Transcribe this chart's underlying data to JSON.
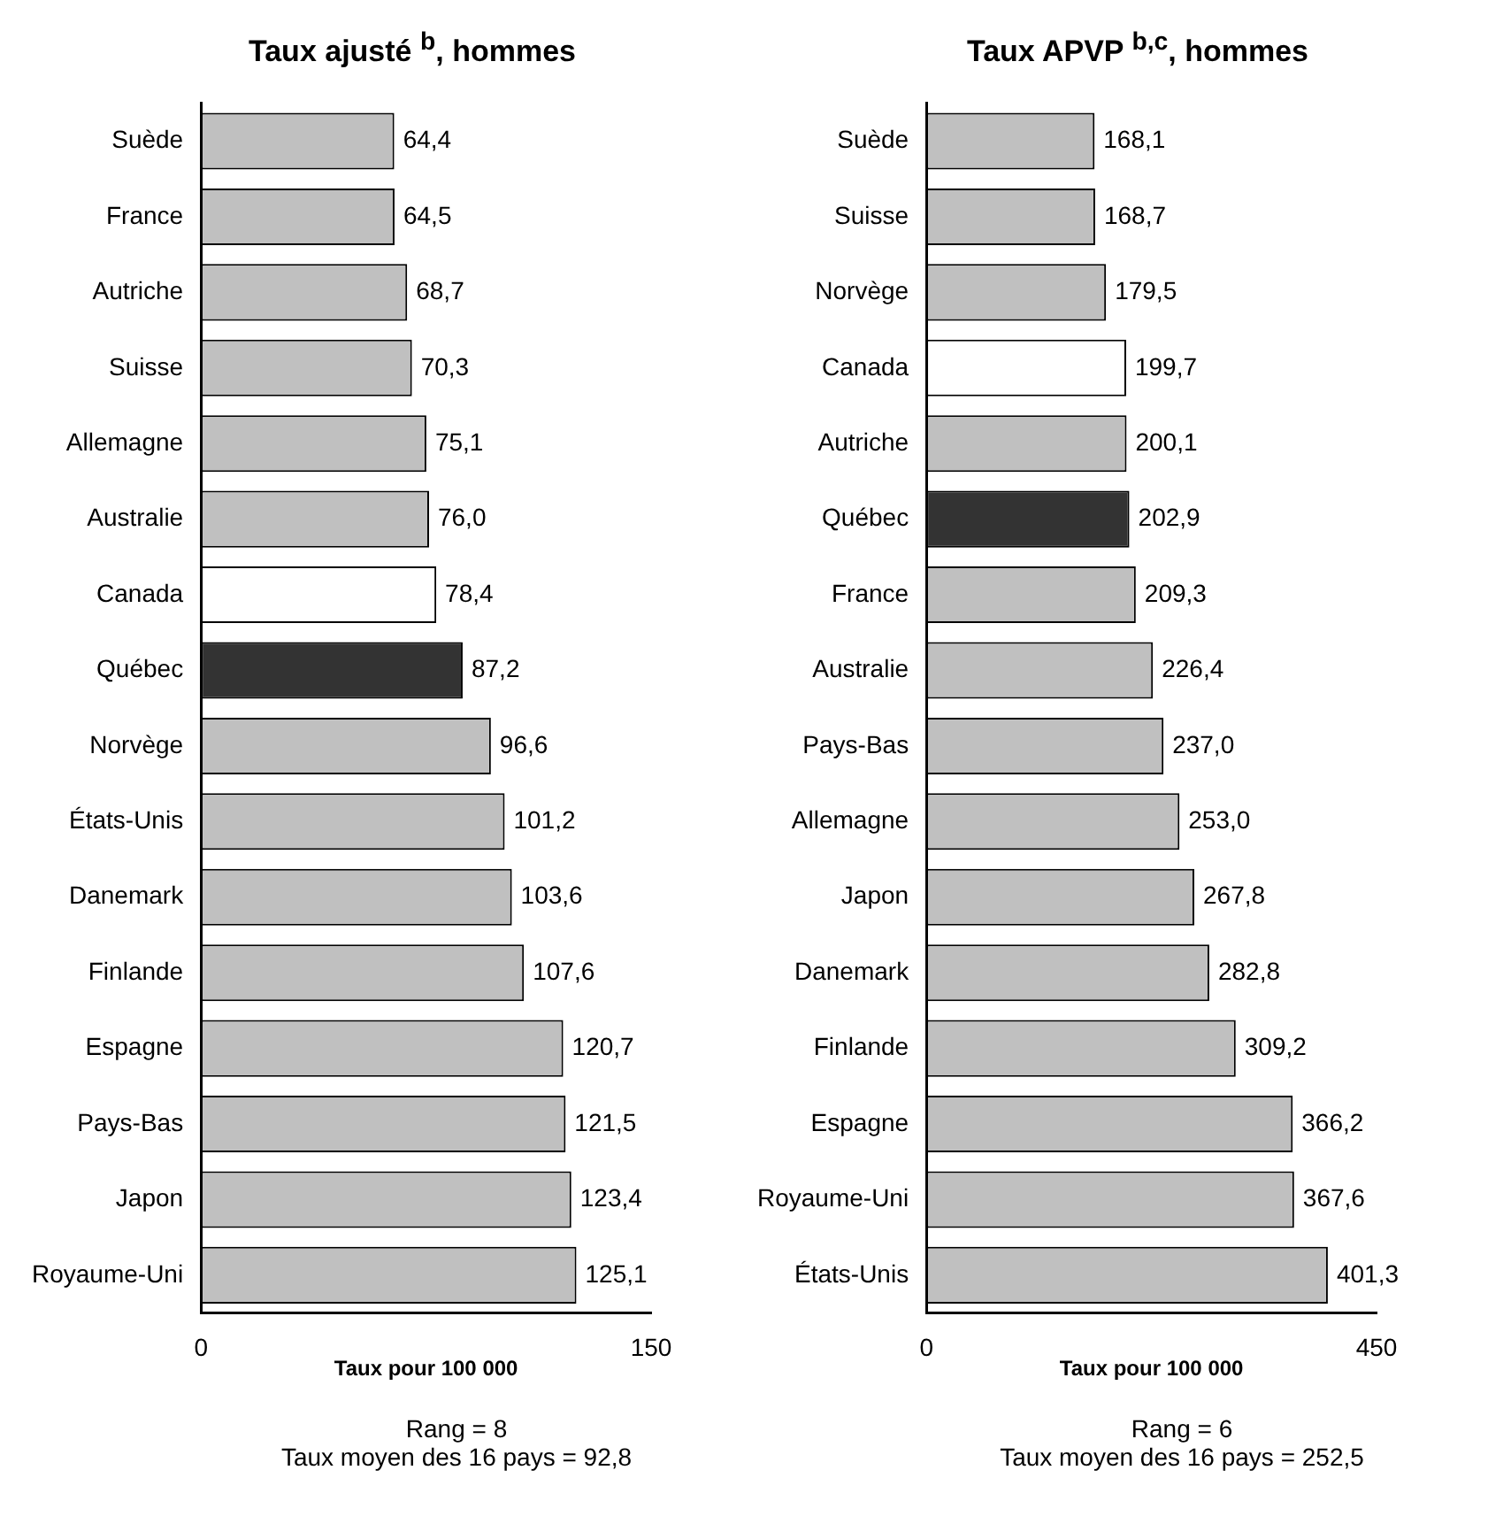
{
  "chart_data": [
    {
      "type": "bar",
      "orientation": "horizontal",
      "title": "Taux ajusté $^{b}$, hommes",
      "xlabel": "Taux pour 100 000",
      "categories": [
        "Suède",
        "France",
        "Autriche",
        "Suisse",
        "Allemagne",
        "Australie",
        "Canada",
        "Québec",
        "Norvège",
        "États-Unis",
        "Danemark",
        "Finlande",
        "Espagne",
        "Pays-Bas",
        "Japon",
        "Royaume-Uni"
      ],
      "values": [
        64.4,
        64.5,
        68.7,
        70.3,
        75.1,
        76.0,
        78.4,
        87.2,
        96.6,
        101.2,
        103.6,
        107.6,
        120.7,
        121.5,
        123.4,
        125.1
      ],
      "value_labels": [
        "64,4",
        "64,5",
        "68,7",
        "70,3",
        "75,1",
        "76,0",
        "78,4",
        "87,2",
        "96,6",
        "101,2",
        "103,6",
        "107,6",
        "120,7",
        "121,5",
        "123,4",
        "125,1"
      ],
      "colors": [
        "#c0c0c0",
        "#c0c0c0",
        "#c0c0c0",
        "#c0c0c0",
        "#c0c0c0",
        "#c0c0c0",
        "#ffffff",
        "#333333",
        "#c0c0c0",
        "#c0c0c0",
        "#c0c0c0",
        "#c0c0c0",
        "#c0c0c0",
        "#c0c0c0",
        "#c0c0c0",
        "#c0c0c0"
      ],
      "xlim": [
        0,
        150
      ],
      "xticks": [
        0,
        150
      ],
      "annotations": [
        "Rang = 8",
        "Taux moyen des 16 pays = 92,8"
      ]
    },
    {
      "type": "bar",
      "orientation": "horizontal",
      "title": "Taux APVP $^{b,c}$, hommes",
      "xlabel": "Taux pour 100 000",
      "categories": [
        "Suède",
        "Suisse",
        "Norvège",
        "Canada",
        "Autriche",
        "Québec",
        "France",
        "Australie",
        "Pays-Bas",
        "Allemagne",
        "Japon",
        "Danemark",
        "Finlande",
        "Espagne",
        "Royaume-Uni",
        "États-Unis"
      ],
      "values": [
        168.1,
        168.7,
        179.5,
        199.7,
        200.1,
        202.9,
        209.3,
        226.4,
        237.0,
        253.0,
        267.8,
        282.8,
        309.2,
        366.2,
        367.6,
        401.3
      ],
      "value_labels": [
        "168,1",
        "168,7",
        "179,5",
        "199,7",
        "200,1",
        "202,9",
        "209,3",
        "226,4",
        "237,0",
        "253,0",
        "267,8",
        "282,8",
        "309,2",
        "366,2",
        "367,6",
        "401,3"
      ],
      "colors": [
        "#c0c0c0",
        "#c0c0c0",
        "#c0c0c0",
        "#ffffff",
        "#c0c0c0",
        "#333333",
        "#c0c0c0",
        "#c0c0c0",
        "#c0c0c0",
        "#c0c0c0",
        "#c0c0c0",
        "#c0c0c0",
        "#c0c0c0",
        "#c0c0c0",
        "#c0c0c0",
        "#c0c0c0"
      ],
      "xlim": [
        0,
        450
      ],
      "xticks": [
        0,
        450
      ],
      "annotations": [
        "Rang = 6",
        "Taux moyen des 16 pays = 252,5"
      ]
    }
  ]
}
